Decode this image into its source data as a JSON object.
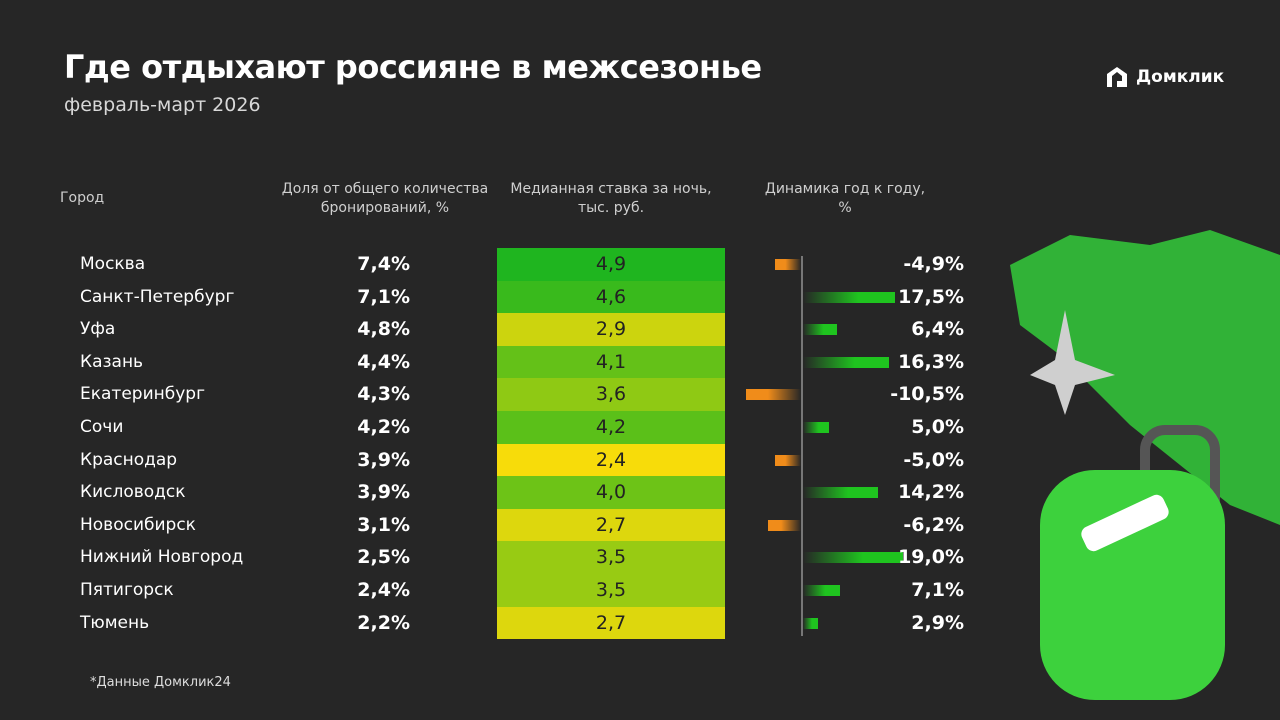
{
  "header": {
    "title": "Где отдыхают россияне в межсезонье",
    "subtitle": "февраль-март 2026",
    "logo": "Домклик"
  },
  "footnote": "*Данные Домклик24",
  "colors": {
    "background": "#262626",
    "positive": "#1fc41f",
    "negative": "#f08c1a",
    "heat_low": "#f7dc0a",
    "heat_high": "#1fb51f"
  },
  "chart_data": {
    "type": "table",
    "columns": [
      "Город",
      "Доля от общего количества бронирований, %",
      "Медианная ставка за ночь, тыс. руб.",
      "Динамика год к году, %"
    ],
    "rows": [
      {
        "city": "Москва",
        "share": "7,4%",
        "rate": "4,9",
        "rate_value": 4.9,
        "change": "-4,9%",
        "change_value": -4.9
      },
      {
        "city": "Санкт-Петербург",
        "share": "7,1%",
        "rate": "4,6",
        "rate_value": 4.6,
        "change": "17,5%",
        "change_value": 17.5
      },
      {
        "city": "Уфа",
        "share": "4,8%",
        "rate": "2,9",
        "rate_value": 2.9,
        "change": "6,4%",
        "change_value": 6.4
      },
      {
        "city": "Казань",
        "share": "4,4%",
        "rate": "4,1",
        "rate_value": 4.1,
        "change": "16,3%",
        "change_value": 16.3
      },
      {
        "city": "Екатеринбург",
        "share": "4,3%",
        "rate": "3,6",
        "rate_value": 3.6,
        "change": "-10,5%",
        "change_value": -10.5
      },
      {
        "city": "Сочи",
        "share": "4,2%",
        "rate": "4,2",
        "rate_value": 4.2,
        "change": "5,0%",
        "change_value": 5.0
      },
      {
        "city": "Краснодар",
        "share": "3,9%",
        "rate": "2,4",
        "rate_value": 2.4,
        "change": "-5,0%",
        "change_value": -5.0
      },
      {
        "city": "Кисловодск",
        "share": "3,9%",
        "rate": "4,0",
        "rate_value": 4.0,
        "change": "14,2%",
        "change_value": 14.2
      },
      {
        "city": "Новосибирск",
        "share": "3,1%",
        "rate": "2,7",
        "rate_value": 2.7,
        "change": "-6,2%",
        "change_value": -6.2
      },
      {
        "city": "Нижний Новгород",
        "share": "2,5%",
        "rate": "3,5",
        "rate_value": 3.5,
        "change": "19,0%",
        "change_value": 19.0
      },
      {
        "city": "Пятигорск",
        "share": "2,4%",
        "rate": "3,5",
        "rate_value": 3.5,
        "change": "7,1%",
        "change_value": 7.1
      },
      {
        "city": "Тюмень",
        "share": "2,2%",
        "rate": "2,7",
        "rate_value": 2.7,
        "change": "2,9%",
        "change_value": 2.9
      }
    ]
  }
}
